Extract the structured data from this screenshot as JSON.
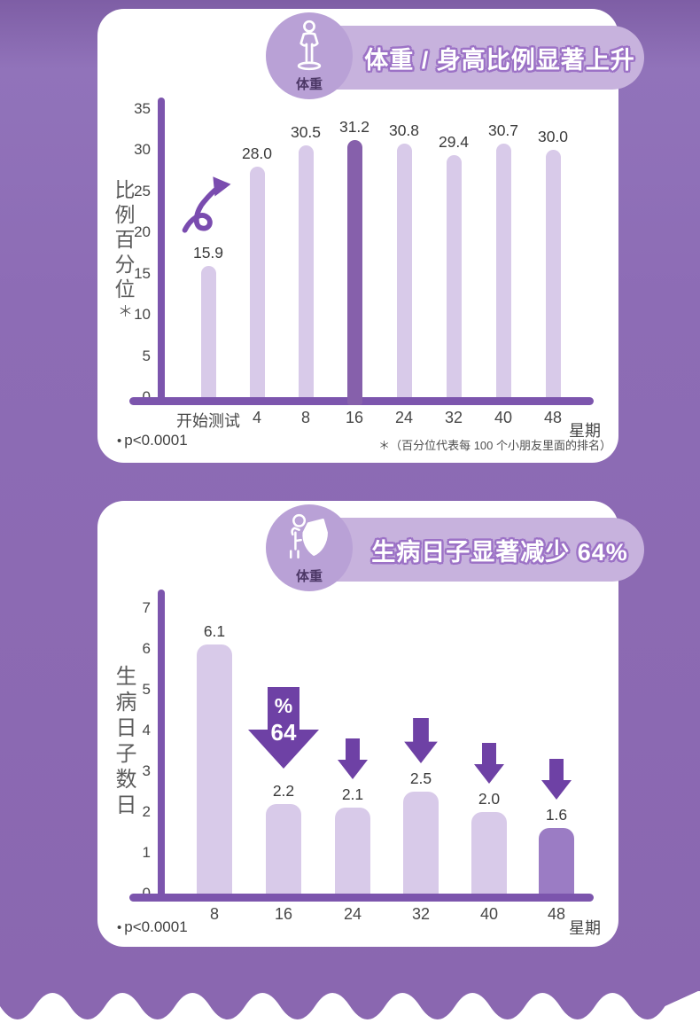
{
  "colors": {
    "background": "#8d6cb5",
    "card": "#ffffff",
    "banner": "#c7b2dd",
    "icon_circle": "#b9a1d6",
    "title_text": "#ffffff",
    "title_outline": "#9c72c6",
    "bar_light": "#d8cae9",
    "bar_dark": "#8660ab",
    "bar_medium": "#9b7cc4",
    "axis": "#7c55ad",
    "arrow": "#6e41a5",
    "label_text": "#3a3a3a"
  },
  "card1": {
    "icon": "person-height-icon",
    "icon_label": "体重",
    "title": "体重 / 身高比例显著上升",
    "ylabel": "比例百分位",
    "ylabel_note": "＊",
    "x_unit": "星期",
    "p_bullet": "•",
    "p_value": "p<0.0001",
    "footnote": "＊（百分位代表每 100 个小朋友里面的排名）"
  },
  "card2": {
    "icon": "shield-person-icon",
    "icon_label": "体重",
    "title": "生病日子显著减少 64%",
    "ylabel": "生病日子数日",
    "x_unit": "星期",
    "p_bullet": "•",
    "p_value": "p<0.0001"
  },
  "chart_data": [
    {
      "type": "bar",
      "title": "体重 / 身高比例显著上升",
      "ylabel": "比例百分位*",
      "xlabel": "星期",
      "categories": [
        "开始测试",
        "4",
        "8",
        "16",
        "24",
        "32",
        "40",
        "48"
      ],
      "values": [
        15.9,
        28.0,
        30.5,
        31.2,
        30.8,
        29.4,
        30.7,
        30.0
      ],
      "value_labels": [
        "15.9",
        "28.0",
        "30.5",
        "31.2",
        "30.8",
        "29.4",
        "30.7",
        "30.0"
      ],
      "highlight_index": 3,
      "yticks": [
        0,
        5,
        10,
        15,
        20,
        25,
        30,
        35
      ],
      "ylim": [
        0,
        36.5
      ],
      "grid": false,
      "legend": null,
      "annotations": [
        "p<0.0001",
        "＊（百分位代表每 100 个小朋友里面的排名）"
      ]
    },
    {
      "type": "bar",
      "title": "生病日子显著减少 64%",
      "ylabel": "生病日子数日",
      "xlabel": "星期",
      "categories": [
        "8",
        "16",
        "24",
        "32",
        "40",
        "48"
      ],
      "values": [
        6.1,
        2.2,
        2.1,
        2.5,
        2.0,
        1.6
      ],
      "value_labels": [
        "6.1",
        "2.2",
        "2.1",
        "2.5",
        "2.0",
        "1.6"
      ],
      "highlight_index": 5,
      "yticks": [
        0,
        1,
        2,
        3,
        4,
        5,
        6,
        7
      ],
      "ylim": [
        0,
        7.3
      ],
      "grid": false,
      "legend": null,
      "arrows": [
        {
          "index": 1,
          "size": "big",
          "lines": [
            "%",
            "64"
          ]
        },
        {
          "index": 2,
          "size": "small"
        },
        {
          "index": 3,
          "size": "medium"
        },
        {
          "index": 4,
          "size": "small"
        },
        {
          "index": 5,
          "size": "small"
        }
      ],
      "annotations": [
        "p<0.0001"
      ]
    }
  ]
}
